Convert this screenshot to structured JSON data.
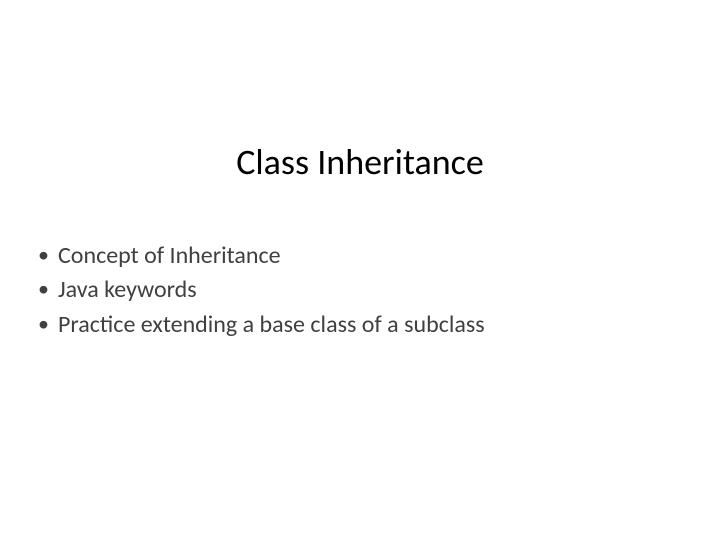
{
  "slide": {
    "title": "Class Inheritance",
    "title_fontsize": 36,
    "title_color": "#000000",
    "bullet_color": "#404040",
    "bullet_fontsize": 24,
    "background_color": "#ffffff",
    "bullets": [
      "Concept of Inheritance",
      "Java keywords",
      "Practice extending a base class of a subclass"
    ]
  }
}
